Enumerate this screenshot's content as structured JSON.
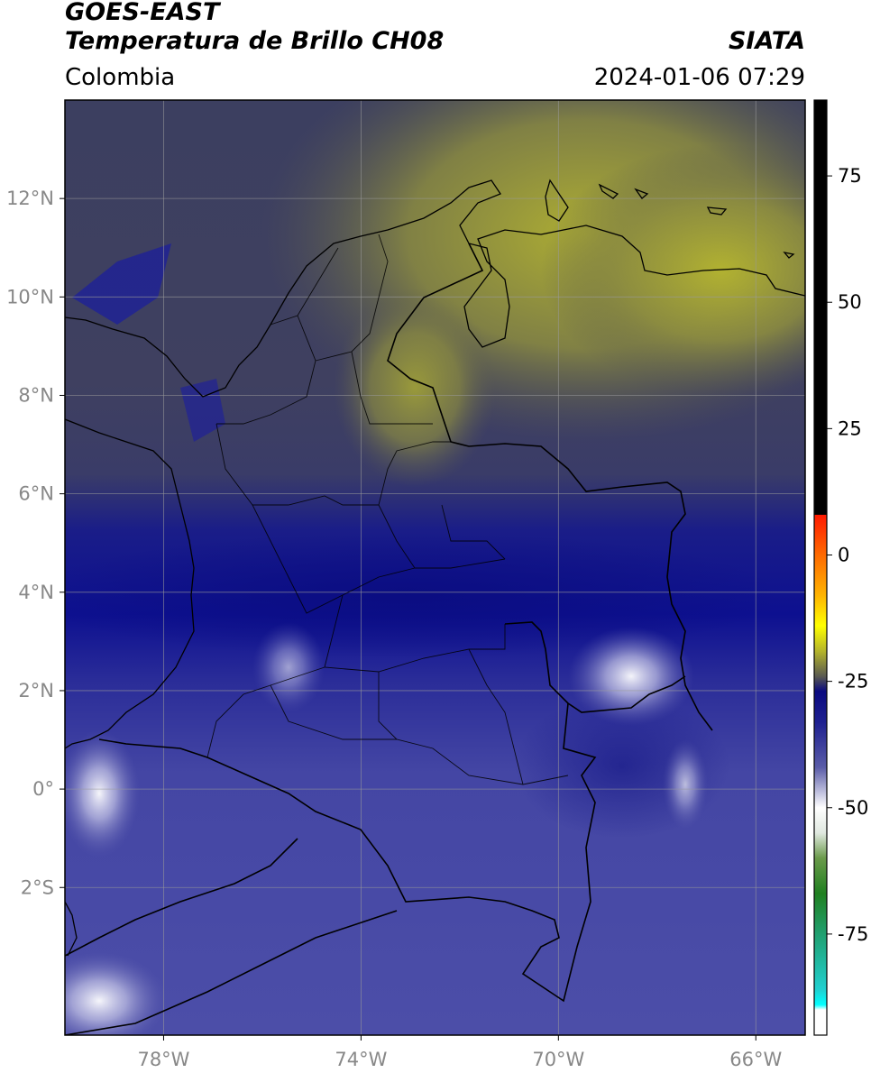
{
  "header": {
    "satellite": "GOES-EAST",
    "product": "Temperatura de Brillo CH08",
    "region": "Colombia",
    "agency": "SIATA",
    "timestamp": "2024-01-06 07:29"
  },
  "map": {
    "lon_range": [
      -80,
      -65
    ],
    "lat_range": [
      -5,
      14
    ],
    "lon_ticks": [
      {
        "value": -78,
        "label": "78°W"
      },
      {
        "value": -74,
        "label": "74°W"
      },
      {
        "value": -70,
        "label": "70°W"
      },
      {
        "value": -66,
        "label": "66°W"
      }
    ],
    "lat_ticks": [
      {
        "value": 12,
        "label": "12°N"
      },
      {
        "value": 10,
        "label": "10°N"
      },
      {
        "value": 8,
        "label": "8°N"
      },
      {
        "value": 6,
        "label": "6°N"
      },
      {
        "value": 4,
        "label": "4°N"
      },
      {
        "value": 2,
        "label": "2°N"
      },
      {
        "value": 0,
        "label": "0°"
      },
      {
        "value": -2,
        "label": "2°S"
      }
    ],
    "gridlines": true
  },
  "colorbar": {
    "unit_range": [
      -95,
      90
    ],
    "ticks": [
      {
        "value": 75,
        "label": "75"
      },
      {
        "value": 50,
        "label": "50"
      },
      {
        "value": 25,
        "label": "25"
      },
      {
        "value": 0,
        "label": "0"
      },
      {
        "value": -25,
        "label": "-25"
      },
      {
        "value": -50,
        "label": "-50"
      },
      {
        "value": -75,
        "label": "-75"
      }
    ],
    "stops": [
      {
        "value": 90,
        "color": "#000000"
      },
      {
        "value": 8,
        "color": "#000000"
      },
      {
        "value": 7.9,
        "color": "#ff1a00"
      },
      {
        "value": 0,
        "color": "#ff6a00"
      },
      {
        "value": -8,
        "color": "#ffb400"
      },
      {
        "value": -14,
        "color": "#ffff00"
      },
      {
        "value": -19,
        "color": "#b5b52a"
      },
      {
        "value": -24,
        "color": "#5a5a50"
      },
      {
        "value": -27,
        "color": "#0a0a80"
      },
      {
        "value": -33,
        "color": "#1e2090"
      },
      {
        "value": -42,
        "color": "#5a5ca8"
      },
      {
        "value": -50,
        "color": "#ffffff"
      },
      {
        "value": -55,
        "color": "#e0e8e0"
      },
      {
        "value": -60,
        "color": "#6a9a4a"
      },
      {
        "value": -67,
        "color": "#208020"
      },
      {
        "value": -75,
        "color": "#20a070"
      },
      {
        "value": -86,
        "color": "#20d0d0"
      },
      {
        "value": -89,
        "color": "#00ffff"
      },
      {
        "value": -90,
        "color": "#ffffff"
      },
      {
        "value": -95,
        "color": "#ffffff"
      }
    ]
  }
}
